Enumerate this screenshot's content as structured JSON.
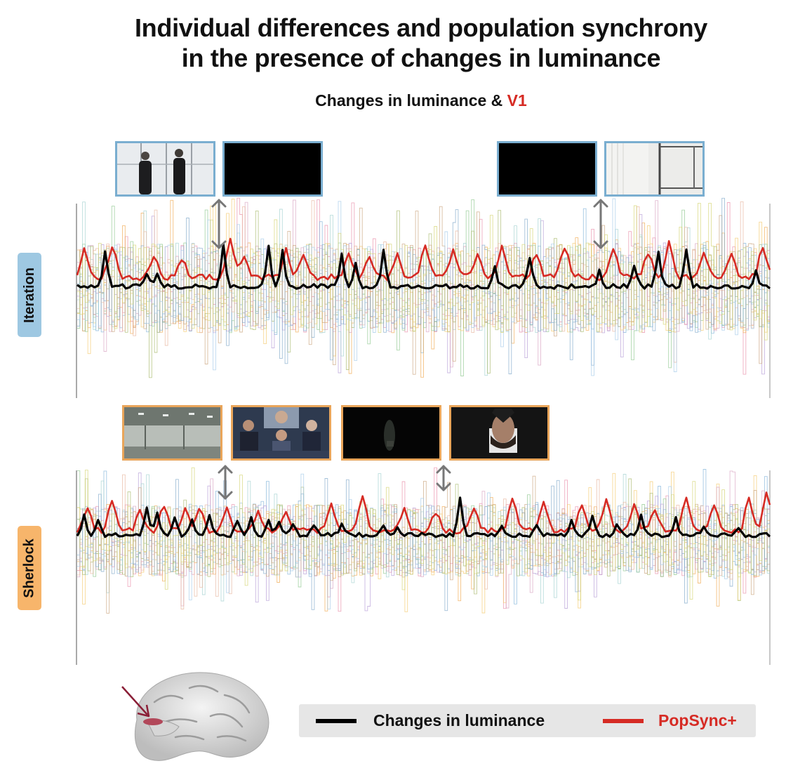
{
  "title_line1": "Individual differences and population synchrony",
  "title_line2": "in the presence of changes in luminance",
  "subtitle": {
    "prefix": "Changes in luminance &",
    "accent": "V1"
  },
  "colors": {
    "luminance": "#000000",
    "popsync": "#d62b24",
    "iteration_tag": "#9ec8e2",
    "sherlock_tag": "#f7b56b",
    "iteration_frame": "#7aaed0",
    "sherlock_frame": "#e9a55a",
    "legend_bg": "#e6e6e6",
    "arrow": "#777777"
  },
  "legend": {
    "luminance_label": "Changes in luminance",
    "popsync_label": "PopSync+"
  },
  "chart_data": [
    {
      "type": "line",
      "panel": "Iteration",
      "title": "",
      "xlabel": "",
      "ylabel": "",
      "n_points": 200,
      "series": [
        {
          "name": "Changes in luminance",
          "role": "luminance",
          "baseline": 0,
          "peaks": [
            [
              8,
              4.5
            ],
            [
              20,
              1.8
            ],
            [
              23,
              1.5
            ],
            [
              42,
              5.3
            ],
            [
              55,
              5.0
            ],
            [
              59,
              4.6
            ],
            [
              76,
              4.3
            ],
            [
              80,
              2.8
            ],
            [
              88,
              4.7
            ],
            [
              120,
              2.4
            ],
            [
              130,
              3.8
            ],
            [
              150,
              2.0
            ],
            [
              160,
              2.6
            ],
            [
              167,
              4.6
            ],
            [
              175,
              4.9
            ],
            [
              195,
              1.8
            ]
          ]
        },
        {
          "name": "PopSync+",
          "role": "popsync",
          "baseline": 1.2,
          "peaks": [
            [
              2,
              3.5
            ],
            [
              10,
              4.0
            ],
            [
              22,
              3.0
            ],
            [
              30,
              2.4
            ],
            [
              44,
              5.0
            ],
            [
              48,
              2.8
            ],
            [
              60,
              3.5
            ],
            [
              65,
              3.2
            ],
            [
              78,
              3.0
            ],
            [
              84,
              2.6
            ],
            [
              92,
              2.8
            ],
            [
              100,
              4.0
            ],
            [
              108,
              3.6
            ],
            [
              115,
              2.9
            ],
            [
              122,
              3.7
            ],
            [
              132,
              3.2
            ],
            [
              140,
              4.1
            ],
            [
              154,
              3.6
            ],
            [
              164,
              3.2
            ],
            [
              170,
              4.3
            ],
            [
              180,
              3.4
            ],
            [
              188,
              3.1
            ],
            [
              197,
              4.0
            ]
          ]
        }
      ]
    },
    {
      "type": "line",
      "panel": "Sherlock",
      "title": "",
      "xlabel": "",
      "ylabel": "",
      "n_points": 200,
      "series": [
        {
          "name": "Changes in luminance",
          "role": "luminance",
          "baseline": 0,
          "peaks": [
            [
              2,
              2.8
            ],
            [
              6,
              2.0
            ],
            [
              20,
              3.9
            ],
            [
              23,
              3.3
            ],
            [
              28,
              2.6
            ],
            [
              33,
              2.2
            ],
            [
              38,
              2.8
            ],
            [
              46,
              2.0
            ],
            [
              50,
              2.4
            ],
            [
              55,
              2.0
            ],
            [
              58,
              1.9
            ],
            [
              62,
              1.8
            ],
            [
              68,
              1.5
            ],
            [
              76,
              1.5
            ],
            [
              88,
              1.6
            ],
            [
              92,
              1.4
            ],
            [
              110,
              5.1
            ],
            [
              122,
              1.2
            ],
            [
              132,
              1.3
            ],
            [
              142,
              2.1
            ],
            [
              148,
              2.5
            ],
            [
              155,
              1.5
            ],
            [
              162,
              2.9
            ],
            [
              172,
              2.3
            ],
            [
              180,
              1.3
            ],
            [
              190,
              1.2
            ]
          ]
        },
        {
          "name": "PopSync+",
          "role": "popsync",
          "baseline": 0.6,
          "peaks": [
            [
              3,
              3.6
            ],
            [
              10,
              4.4
            ],
            [
              18,
              2.6
            ],
            [
              25,
              3.8
            ],
            [
              31,
              2.9
            ],
            [
              35,
              3.2
            ],
            [
              43,
              3.5
            ],
            [
              52,
              2.8
            ],
            [
              60,
              2.6
            ],
            [
              73,
              3.9
            ],
            [
              82,
              4.6
            ],
            [
              94,
              3.0
            ],
            [
              103,
              2.6
            ],
            [
              114,
              3.3
            ],
            [
              125,
              4.7
            ],
            [
              134,
              3.9
            ],
            [
              145,
              3.4
            ],
            [
              152,
              4.3
            ],
            [
              160,
              3.5
            ],
            [
              166,
              2.8
            ],
            [
              175,
              4.5
            ],
            [
              183,
              3.7
            ],
            [
              193,
              4.4
            ],
            [
              198,
              5.2
            ]
          ]
        }
      ]
    }
  ],
  "panels": {
    "iteration_label": "Iteration",
    "sherlock_label": "Sherlock"
  }
}
